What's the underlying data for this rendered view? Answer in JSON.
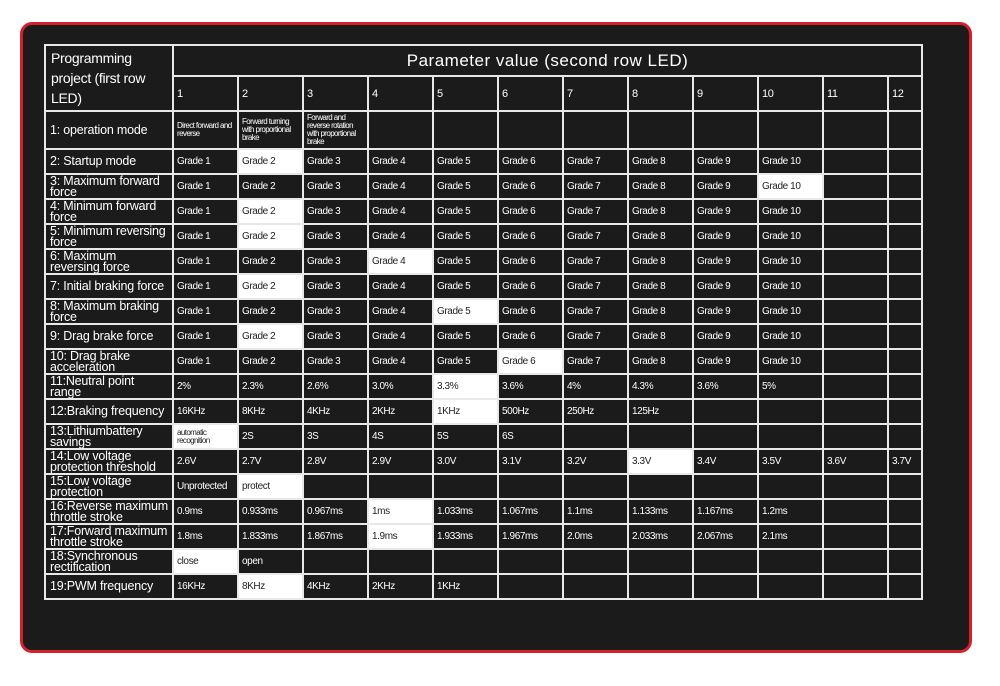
{
  "header": {
    "project_title": "Programming project (first row LED)",
    "value_title": "Parameter value (second row LED)",
    "columns": [
      "1",
      "2",
      "3",
      "4",
      "5",
      "6",
      "7",
      "8",
      "9",
      "10",
      "11",
      "12"
    ]
  },
  "colors": {
    "frame_border": "#d4202c",
    "background": "#1b1b1b",
    "default_cell": "#ffffff"
  },
  "rows": [
    {
      "label": "1: operation mode",
      "values": [
        "Direct forward and reverse",
        "Forward turning with proportional brake",
        "Forward and reverse rotation with proportional brake",
        "",
        "",
        "",
        "",
        "",
        "",
        "",
        "",
        ""
      ],
      "default": 0
    },
    {
      "label": "2: Startup mode",
      "values": [
        "Grade 1",
        "Grade 2",
        "Grade 3",
        "Grade 4",
        "Grade 5",
        "Grade 6",
        "Grade 7",
        "Grade 8",
        "Grade 9",
        "Grade 10",
        "",
        ""
      ],
      "default": 2
    },
    {
      "label": "3: Maximum forward force",
      "values": [
        "Grade 1",
        "Grade 2",
        "Grade 3",
        "Grade 4",
        "Grade 5",
        "Grade 6",
        "Grade 7",
        "Grade 8",
        "Grade 9",
        "Grade 10",
        "",
        ""
      ],
      "default": 10
    },
    {
      "label": "4: Minimum forward force",
      "values": [
        "Grade 1",
        "Grade 2",
        "Grade 3",
        "Grade 4",
        "Grade 5",
        "Grade 6",
        "Grade 7",
        "Grade 8",
        "Grade 9",
        "Grade 10",
        "",
        ""
      ],
      "default": 2
    },
    {
      "label": "5: Minimum reversing force",
      "values": [
        "Grade 1",
        "Grade 2",
        "Grade 3",
        "Grade 4",
        "Grade 5",
        "Grade 6",
        "Grade 7",
        "Grade 8",
        "Grade 9",
        "Grade 10",
        "",
        ""
      ],
      "default": 2
    },
    {
      "label": "6: Maximum reversing force",
      "values": [
        "Grade 1",
        "Grade 2",
        "Grade 3",
        "Grade 4",
        "Grade 5",
        "Grade 6",
        "Grade 7",
        "Grade 8",
        "Grade 9",
        "Grade 10",
        "",
        ""
      ],
      "default": 4
    },
    {
      "label": "7: Initial braking force",
      "values": [
        "Grade 1",
        "Grade 2",
        "Grade 3",
        "Grade 4",
        "Grade 5",
        "Grade 6",
        "Grade 7",
        "Grade 8",
        "Grade 9",
        "Grade 10",
        "",
        ""
      ],
      "default": 2
    },
    {
      "label": "8: Maximum braking force",
      "values": [
        "Grade 1",
        "Grade 2",
        "Grade 3",
        "Grade 4",
        "Grade 5",
        "Grade 6",
        "Grade 7",
        "Grade 8",
        "Grade 9",
        "Grade 10",
        "",
        ""
      ],
      "default": 5
    },
    {
      "label": "9: Drag brake force",
      "values": [
        "Grade 1",
        "Grade 2",
        "Grade 3",
        "Grade 4",
        "Grade 5",
        "Grade 6",
        "Grade 7",
        "Grade 8",
        "Grade 9",
        "Grade 10",
        "",
        ""
      ],
      "default": 2
    },
    {
      "label": "10: Drag brake acceleration",
      "values": [
        "Grade 1",
        "Grade 2",
        "Grade 3",
        "Grade 4",
        "Grade 5",
        "Grade 6",
        "Grade 7",
        "Grade 8",
        "Grade 9",
        "Grade 10",
        "",
        ""
      ],
      "default": 6
    },
    {
      "label": "11:Neutral point range",
      "values": [
        "2%",
        "2.3%",
        "2.6%",
        "3.0%",
        "3.3%",
        "3.6%",
        "4%",
        "4.3%",
        "3.6%",
        "5%",
        "",
        ""
      ],
      "default": 5
    },
    {
      "label": "12:Braking frequency",
      "values": [
        "16KHz",
        "8KHz",
        "4KHz",
        "2KHz",
        "1KHz",
        "500Hz",
        "250Hz",
        "125Hz",
        "",
        "",
        "",
        ""
      ],
      "default": 5
    },
    {
      "label": "13:Lithiumbattery savings",
      "values": [
        "automatic recognition",
        "2S",
        "3S",
        "4S",
        "5S",
        "6S",
        "",
        "",
        "",
        "",
        "",
        ""
      ],
      "default": 1
    },
    {
      "label": "14:Low voltage protection threshold",
      "values": [
        "2.6V",
        "2.7V",
        "2.8V",
        "2.9V",
        "3.0V",
        "3.1V",
        "3.2V",
        "3.3V",
        "3.4V",
        "3.5V",
        "3.6V",
        "3.7V"
      ],
      "default": 8
    },
    {
      "label": "15:Low voltage protection",
      "values": [
        "Unprotected",
        "protect",
        "",
        "",
        "",
        "",
        "",
        "",
        "",
        "",
        "",
        ""
      ],
      "default": 2
    },
    {
      "label": "16:Reverse maximum throttle stroke",
      "values": [
        "0.9ms",
        "0.933ms",
        "0.967ms",
        "1ms",
        "1.033ms",
        "1.067ms",
        "1.1ms",
        "1.133ms",
        "1.167ms",
        "1.2ms",
        "",
        ""
      ],
      "default": 4
    },
    {
      "label": "17:Forward maximum throttle stroke",
      "values": [
        "1.8ms",
        "1.833ms",
        "1.867ms",
        "1.9ms",
        "1.933ms",
        "1.967ms",
        "2.0ms",
        "2.033ms",
        "2.067ms",
        "2.1ms",
        "",
        ""
      ],
      "default": 4
    },
    {
      "label": "18:Synchronous rectification",
      "values": [
        "close",
        "open",
        "",
        "",
        "",
        "",
        "",
        "",
        "",
        "",
        "",
        ""
      ],
      "default": 1
    },
    {
      "label": "19:PWM frequency",
      "values": [
        "16KHz",
        "8KHz",
        "4KHz",
        "2KHz",
        "1KHz",
        "",
        "",
        "",
        "",
        "",
        "",
        ""
      ],
      "default": 2
    }
  ]
}
